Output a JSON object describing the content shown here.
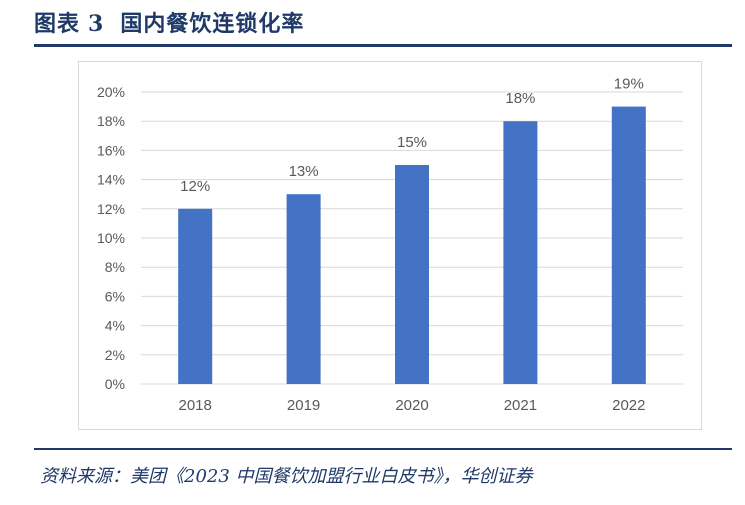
{
  "figure": {
    "label": "图表",
    "number": "3",
    "title": "国内餐饮连锁化率"
  },
  "source": {
    "text": "资料来源：美团《2023 中国餐饮加盟行业白皮书》，华创证券"
  },
  "colors": {
    "bar": "#4472c4",
    "grid": "#d9d9d9",
    "accent": "#1f3a68",
    "text": "#595959"
  },
  "chart_data": {
    "type": "bar",
    "title": "国内餐饮连锁化率",
    "xlabel": "",
    "ylabel": "",
    "categories": [
      "2018",
      "2019",
      "2020",
      "2021",
      "2022"
    ],
    "values": [
      12,
      13,
      15,
      18,
      19
    ],
    "data_labels": [
      "12%",
      "13%",
      "15%",
      "18%",
      "19%"
    ],
    "ylim": [
      0,
      20
    ],
    "yticks": [
      0,
      2,
      4,
      6,
      8,
      10,
      12,
      14,
      16,
      18,
      20
    ],
    "ytick_labels": [
      "0%",
      "2%",
      "4%",
      "6%",
      "8%",
      "10%",
      "12%",
      "14%",
      "16%",
      "18%",
      "20%"
    ],
    "grid": true,
    "legend": "none"
  }
}
